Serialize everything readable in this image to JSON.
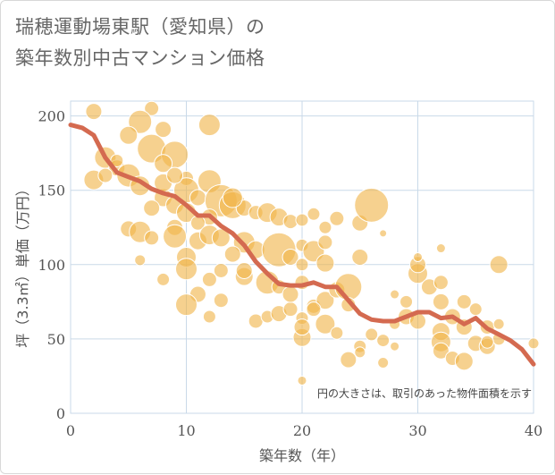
{
  "title": {
    "line1": "瑞穂運動場東駅（愛知県）の",
    "line2": "築年数別中古マンション価格"
  },
  "chart_data": {
    "type": "scatter",
    "title": "瑞穂運動場東駅（愛知県）の築年数別中古マンション価格",
    "xlabel": "築年数（年）",
    "ylabel": "坪（3.3㎡）単価（万円）",
    "xlim": [
      0,
      40
    ],
    "ylim": [
      0,
      210
    ],
    "xticks": [
      0,
      10,
      20,
      30,
      40
    ],
    "yticks": [
      0,
      50,
      100,
      150,
      200
    ],
    "grid": true,
    "note": "円の大きさは、取引のあった物件面積を示す",
    "colors": {
      "bubble": "#f0b44a",
      "line": "#d46a50",
      "grid": "#c9d9e8"
    },
    "series": [
      {
        "kind": "bubbles",
        "points": [
          {
            "x": 2,
            "y": 203,
            "s": 9
          },
          {
            "x": 7,
            "y": 205,
            "s": 8
          },
          {
            "x": 6,
            "y": 196,
            "s": 13
          },
          {
            "x": 8,
            "y": 191,
            "s": 9
          },
          {
            "x": 12,
            "y": 194,
            "s": 12
          },
          {
            "x": 5,
            "y": 187,
            "s": 10
          },
          {
            "x": 3,
            "y": 172,
            "s": 12
          },
          {
            "x": 7,
            "y": 178,
            "s": 16
          },
          {
            "x": 9,
            "y": 174,
            "s": 15
          },
          {
            "x": 8,
            "y": 168,
            "s": 10
          },
          {
            "x": 4,
            "y": 165,
            "s": 9
          },
          {
            "x": 5,
            "y": 160,
            "s": 13
          },
          {
            "x": 2,
            "y": 157,
            "s": 11
          },
          {
            "x": 6,
            "y": 153,
            "s": 11
          },
          {
            "x": 10,
            "y": 158,
            "s": 8
          },
          {
            "x": 10,
            "y": 150,
            "s": 14
          },
          {
            "x": 12,
            "y": 156,
            "s": 13
          },
          {
            "x": 11,
            "y": 145,
            "s": 9
          },
          {
            "x": 13,
            "y": 143,
            "s": 18
          },
          {
            "x": 14,
            "y": 140,
            "s": 15
          },
          {
            "x": 15,
            "y": 138,
            "s": 9
          },
          {
            "x": 16,
            "y": 135,
            "s": 8
          },
          {
            "x": 17,
            "y": 135,
            "s": 11
          },
          {
            "x": 18,
            "y": 132,
            "s": 10
          },
          {
            "x": 19,
            "y": 129,
            "s": 8
          },
          {
            "x": 20,
            "y": 130,
            "s": 7
          },
          {
            "x": 8,
            "y": 145,
            "s": 10
          },
          {
            "x": 9,
            "y": 140,
            "s": 10
          },
          {
            "x": 7,
            "y": 138,
            "s": 9
          },
          {
            "x": 10,
            "y": 135,
            "s": 11
          },
          {
            "x": 12,
            "y": 132,
            "s": 9
          },
          {
            "x": 11,
            "y": 128,
            "s": 8
          },
          {
            "x": 5,
            "y": 124,
            "s": 9
          },
          {
            "x": 6,
            "y": 122,
            "s": 12
          },
          {
            "x": 7,
            "y": 118,
            "s": 8
          },
          {
            "x": 9,
            "y": 125,
            "s": 9
          },
          {
            "x": 9,
            "y": 119,
            "s": 13
          },
          {
            "x": 11,
            "y": 116,
            "s": 10
          },
          {
            "x": 12,
            "y": 120,
            "s": 11
          },
          {
            "x": 13,
            "y": 118,
            "s": 10
          },
          {
            "x": 15,
            "y": 115,
            "s": 12
          },
          {
            "x": 16,
            "y": 110,
            "s": 10
          },
          {
            "x": 14,
            "y": 107,
            "s": 9
          },
          {
            "x": 18,
            "y": 110,
            "s": 19
          },
          {
            "x": 19,
            "y": 105,
            "s": 9
          },
          {
            "x": 20,
            "y": 113,
            "s": 7
          },
          {
            "x": 21,
            "y": 109,
            "s": 12
          },
          {
            "x": 22,
            "y": 101,
            "s": 10
          },
          {
            "x": 22,
            "y": 115,
            "s": 8
          },
          {
            "x": 20,
            "y": 100,
            "s": 7
          },
          {
            "x": 10,
            "y": 105,
            "s": 11
          },
          {
            "x": 10,
            "y": 97,
            "s": 12
          },
          {
            "x": 12,
            "y": 90,
            "s": 8
          },
          {
            "x": 13,
            "y": 96,
            "s": 8
          },
          {
            "x": 15,
            "y": 92,
            "s": 10
          },
          {
            "x": 15,
            "y": 96,
            "s": 9
          },
          {
            "x": 17,
            "y": 88,
            "s": 13
          },
          {
            "x": 18,
            "y": 85,
            "s": 8
          },
          {
            "x": 8,
            "y": 90,
            "s": 7
          },
          {
            "x": 6,
            "y": 103,
            "s": 6
          },
          {
            "x": 11,
            "y": 80,
            "s": 9
          },
          {
            "x": 10,
            "y": 73,
            "s": 12
          },
          {
            "x": 13,
            "y": 76,
            "s": 8
          },
          {
            "x": 12,
            "y": 65,
            "s": 7
          },
          {
            "x": 16,
            "y": 62,
            "s": 8
          },
          {
            "x": 17,
            "y": 65,
            "s": 7
          },
          {
            "x": 18,
            "y": 67,
            "s": 9
          },
          {
            "x": 19,
            "y": 70,
            "s": 8
          },
          {
            "x": 20,
            "y": 64,
            "s": 7
          },
          {
            "x": 21,
            "y": 72,
            "s": 8
          },
          {
            "x": 22,
            "y": 76,
            "s": 10
          },
          {
            "x": 22,
            "y": 60,
            "s": 11
          },
          {
            "x": 23,
            "y": 83,
            "s": 9
          },
          {
            "x": 23,
            "y": 54,
            "s": 7
          },
          {
            "x": 24,
            "y": 85,
            "s": 15
          },
          {
            "x": 24,
            "y": 73,
            "s": 8
          },
          {
            "x": 20,
            "y": 51,
            "s": 10
          },
          {
            "x": 19,
            "y": 80,
            "s": 9
          },
          {
            "x": 20,
            "y": 88,
            "s": 8
          },
          {
            "x": 21,
            "y": 134,
            "s": 7
          },
          {
            "x": 22,
            "y": 125,
            "s": 7
          },
          {
            "x": 23,
            "y": 131,
            "s": 8
          },
          {
            "x": 25,
            "y": 128,
            "s": 9
          },
          {
            "x": 26,
            "y": 140,
            "s": 19
          },
          {
            "x": 27,
            "y": 121,
            "s": 4
          },
          {
            "x": 25,
            "y": 105,
            "s": 9
          },
          {
            "x": 24,
            "y": 36,
            "s": 9
          },
          {
            "x": 25,
            "y": 45,
            "s": 7
          },
          {
            "x": 25,
            "y": 41,
            "s": 6
          },
          {
            "x": 26,
            "y": 53,
            "s": 7
          },
          {
            "x": 27,
            "y": 49,
            "s": 7
          },
          {
            "x": 27,
            "y": 34,
            "s": 6
          },
          {
            "x": 28,
            "y": 45,
            "s": 5
          },
          {
            "x": 28,
            "y": 60,
            "s": 6
          },
          {
            "x": 28,
            "y": 80,
            "s": 5
          },
          {
            "x": 29,
            "y": 75,
            "s": 7
          },
          {
            "x": 29,
            "y": 65,
            "s": 9
          },
          {
            "x": 30,
            "y": 62,
            "s": 9
          },
          {
            "x": 30,
            "y": 94,
            "s": 11
          },
          {
            "x": 30,
            "y": 100,
            "s": 9
          },
          {
            "x": 30,
            "y": 105,
            "s": 5
          },
          {
            "x": 31,
            "y": 85,
            "s": 9
          },
          {
            "x": 32,
            "y": 111,
            "s": 5
          },
          {
            "x": 32,
            "y": 88,
            "s": 8
          },
          {
            "x": 32,
            "y": 75,
            "s": 9
          },
          {
            "x": 33,
            "y": 65,
            "s": 9
          },
          {
            "x": 32,
            "y": 55,
            "s": 10
          },
          {
            "x": 32,
            "y": 48,
            "s": 11
          },
          {
            "x": 32,
            "y": 42,
            "s": 9
          },
          {
            "x": 33,
            "y": 37,
            "s": 8
          },
          {
            "x": 34,
            "y": 75,
            "s": 8
          },
          {
            "x": 34,
            "y": 58,
            "s": 9
          },
          {
            "x": 35,
            "y": 47,
            "s": 9
          },
          {
            "x": 34,
            "y": 35,
            "s": 10
          },
          {
            "x": 35,
            "y": 70,
            "s": 7
          },
          {
            "x": 36,
            "y": 58,
            "s": 8
          },
          {
            "x": 36,
            "y": 45,
            "s": 9
          },
          {
            "x": 37,
            "y": 50,
            "s": 7
          },
          {
            "x": 37,
            "y": 60,
            "s": 6
          },
          {
            "x": 37,
            "y": 100,
            "s": 10
          },
          {
            "x": 36,
            "y": 48,
            "s": 7
          },
          {
            "x": 40,
            "y": 47,
            "s": 6
          },
          {
            "x": 20,
            "y": 22,
            "s": 5
          },
          {
            "x": 20,
            "y": 58,
            "s": 9
          },
          {
            "x": 21,
            "y": 70,
            "s": 8
          },
          {
            "x": 14,
            "y": 145,
            "s": 11
          },
          {
            "x": 3,
            "y": 160,
            "s": 8
          },
          {
            "x": 4,
            "y": 170,
            "s": 7
          },
          {
            "x": 8,
            "y": 155,
            "s": 10
          },
          {
            "x": 9,
            "y": 160,
            "s": 9
          }
        ]
      },
      {
        "kind": "line",
        "x": [
          0,
          1,
          2,
          3,
          4,
          5,
          6,
          7,
          8,
          9,
          10,
          11,
          12,
          13,
          14,
          15,
          16,
          17,
          18,
          19,
          20,
          21,
          22,
          23,
          24,
          25,
          26,
          27,
          28,
          29,
          30,
          31,
          32,
          33,
          34,
          35,
          36,
          37,
          38,
          39,
          40
        ],
        "y": [
          194,
          192,
          187,
          172,
          162,
          159,
          156,
          151,
          148,
          146,
          140,
          133,
          133,
          126,
          121,
          113,
          102,
          94,
          87,
          86,
          86,
          88,
          85,
          85,
          76,
          67,
          63,
          62,
          62,
          65,
          68,
          68,
          64,
          65,
          60,
          64,
          57,
          53,
          49,
          43,
          33
        ]
      }
    ]
  }
}
